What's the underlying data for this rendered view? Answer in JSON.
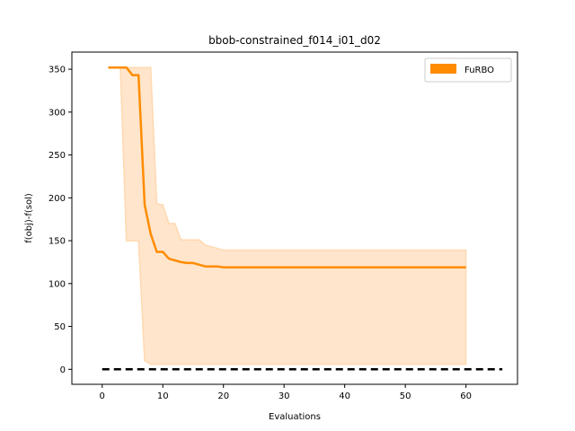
{
  "chart_data": {
    "type": "line",
    "title": "bbob-constrained_f014_i01_d02",
    "xlabel": "Evaluations",
    "ylabel": "f(obj)-f(sol)",
    "xlim": [
      -5,
      68.5
    ],
    "ylim": [
      -17.5,
      370
    ],
    "xticks": [
      0,
      10,
      20,
      30,
      40,
      50,
      60
    ],
    "yticks": [
      0,
      50,
      100,
      150,
      200,
      250,
      300,
      350
    ],
    "grid": false,
    "legend_position": "top-right",
    "series": [
      {
        "name": "FuRBO",
        "color": "#ff8c00",
        "band_color": "#ffe5cc",
        "x": [
          1,
          2,
          3,
          4,
          5,
          6,
          7,
          8,
          9,
          10,
          11,
          12,
          13,
          14,
          15,
          16,
          17,
          18,
          19,
          20,
          60
        ],
        "mean": [
          352,
          352,
          352,
          352,
          343,
          343,
          192,
          158,
          137,
          137,
          129,
          127,
          125,
          124,
          124,
          122,
          120,
          120,
          120,
          119,
          119
        ],
        "upper": [
          352,
          352,
          352,
          352,
          352,
          352,
          352,
          352,
          193,
          192,
          170,
          170,
          151,
          151,
          151,
          151,
          145,
          143,
          141,
          139,
          139
        ],
        "lower": [
          352,
          352,
          352,
          150,
          150,
          150,
          10,
          6,
          6,
          6,
          6,
          6,
          6,
          6,
          6,
          6,
          6,
          6,
          6,
          6,
          6
        ]
      }
    ],
    "reference_line": {
      "y": 0,
      "x_range": [
        0,
        66
      ],
      "style": "dashed",
      "color": "#000000"
    }
  }
}
